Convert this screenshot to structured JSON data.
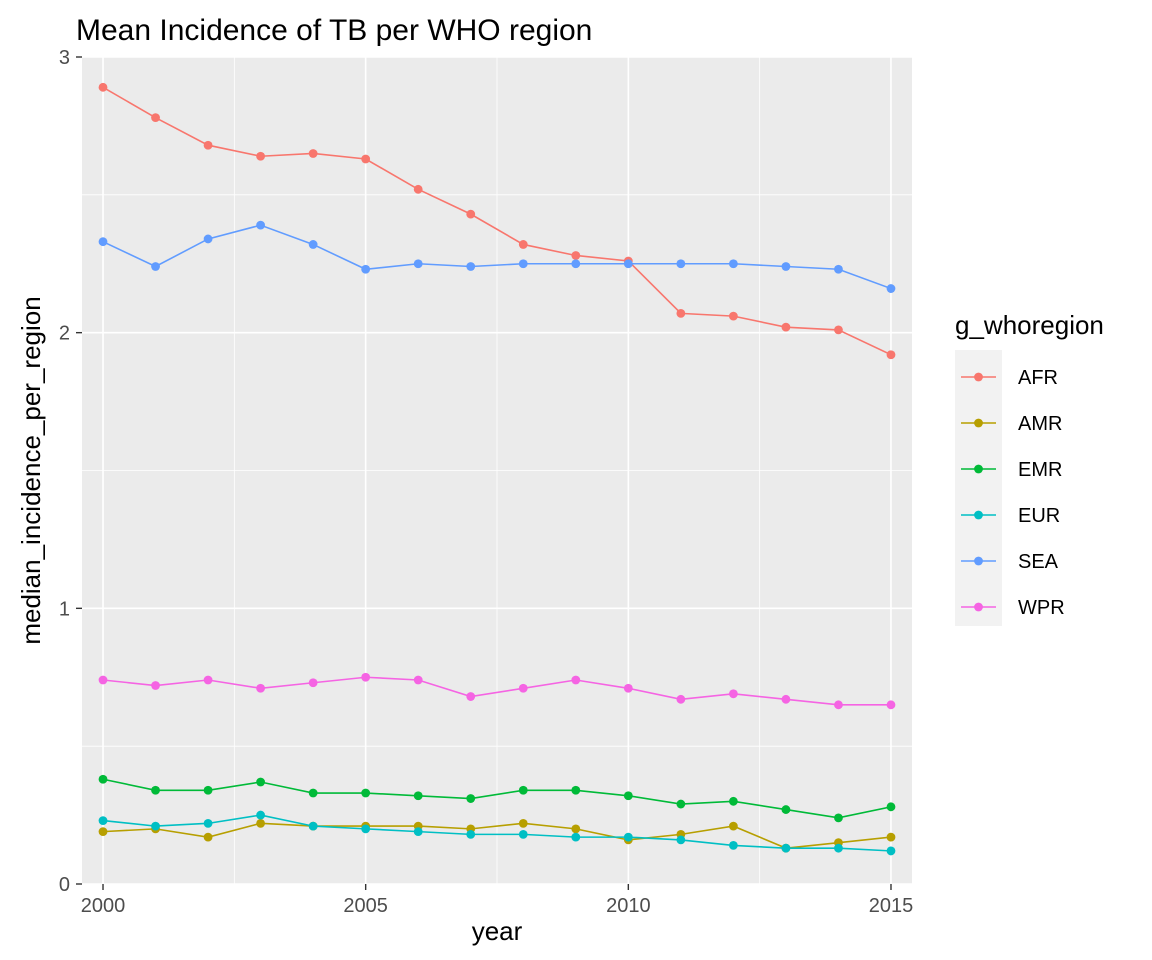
{
  "chart_data": {
    "type": "line",
    "title": "Mean Incidence of TB per WHO region",
    "xlabel": "year",
    "ylabel": "median_incidence_per_region",
    "xlim": [
      1999.6,
      2015.4
    ],
    "ylim": [
      0,
      3.0
    ],
    "x_ticks": [
      2000,
      2005,
      2010,
      2015
    ],
    "x_tick_labels": [
      "2000",
      "2005",
      "2010",
      "2015"
    ],
    "y_ticks": [
      0,
      1,
      2,
      3
    ],
    "y_tick_labels": [
      "0",
      "1",
      "2",
      "3"
    ],
    "grid": true,
    "legend_title": "g_whoregion",
    "legend_position": "right",
    "x": [
      2000,
      2001,
      2002,
      2003,
      2004,
      2005,
      2006,
      2007,
      2008,
      2009,
      2010,
      2011,
      2012,
      2013,
      2014,
      2015
    ],
    "series": [
      {
        "name": "AFR",
        "color": "#F8766D",
        "values": [
          2.89,
          2.78,
          2.68,
          2.64,
          2.65,
          2.63,
          2.52,
          2.43,
          2.32,
          2.28,
          2.26,
          2.07,
          2.06,
          2.02,
          2.01,
          1.92
        ]
      },
      {
        "name": "AMR",
        "color": "#B79F00",
        "values": [
          0.19,
          0.2,
          0.17,
          0.22,
          0.21,
          0.21,
          0.21,
          0.2,
          0.22,
          0.2,
          0.16,
          0.18,
          0.21,
          0.13,
          0.15,
          0.17
        ]
      },
      {
        "name": "EMR",
        "color": "#00BA38",
        "values": [
          0.38,
          0.34,
          0.34,
          0.37,
          0.33,
          0.33,
          0.32,
          0.31,
          0.34,
          0.34,
          0.32,
          0.29,
          0.3,
          0.27,
          0.24,
          0.28
        ]
      },
      {
        "name": "EUR",
        "color": "#00BFC4",
        "values": [
          0.23,
          0.21,
          0.22,
          0.25,
          0.21,
          0.2,
          0.19,
          0.18,
          0.18,
          0.17,
          0.17,
          0.16,
          0.14,
          0.13,
          0.13,
          0.12
        ]
      },
      {
        "name": "SEA",
        "color": "#619CFF",
        "values": [
          2.33,
          2.24,
          2.34,
          2.39,
          2.32,
          2.23,
          2.25,
          2.24,
          2.25,
          2.25,
          2.25,
          2.25,
          2.25,
          2.24,
          2.23,
          2.16
        ]
      },
      {
        "name": "WPR",
        "color": "#F564E3",
        "values": [
          0.74,
          0.72,
          0.74,
          0.71,
          0.73,
          0.75,
          0.74,
          0.68,
          0.71,
          0.74,
          0.71,
          0.67,
          0.69,
          0.67,
          0.65,
          0.65
        ]
      }
    ]
  }
}
